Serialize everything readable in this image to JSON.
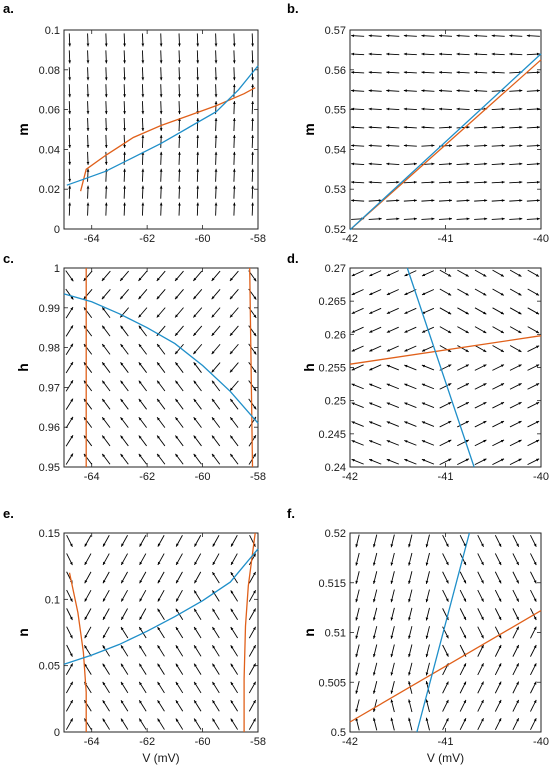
{
  "chart_data": [
    {
      "panel": "a.",
      "type": "line",
      "ylabel": "m",
      "xlabel": "",
      "xlim": [
        -65,
        -58
      ],
      "ylim": [
        0,
        0.1
      ],
      "xticks": [
        -64,
        -62,
        -60,
        -58
      ],
      "yticks": [
        0,
        0.02,
        0.04,
        0.06,
        0.08,
        0.1
      ],
      "xticklabels": [
        "-64",
        "-62",
        "-60",
        "-58"
      ],
      "yticklabels": [
        "0",
        "0.02",
        "0.04",
        "0.06",
        "0.08",
        "0.1"
      ],
      "series": [
        {
          "color": "#e0601a",
          "points": [
            [
              -64.4,
              0.019
            ],
            [
              -64.2,
              0.03
            ],
            [
              -63.5,
              0.037
            ],
            [
              -62.5,
              0.046
            ],
            [
              -61.5,
              0.052
            ],
            [
              -60.5,
              0.057
            ],
            [
              -59.5,
              0.062
            ],
            [
              -58.5,
              0.068
            ],
            [
              -58.1,
              0.071
            ]
          ]
        },
        {
          "color": "#1f8fc9",
          "points": [
            [
              -64.9,
              0.022
            ],
            [
              -64.3,
              0.025
            ],
            [
              -63.5,
              0.029
            ],
            [
              -62.5,
              0.036
            ],
            [
              -61.5,
              0.043
            ],
            [
              -60.5,
              0.051
            ],
            [
              -59.5,
              0.059
            ],
            [
              -58.7,
              0.07
            ],
            [
              -58.0,
              0.082
            ]
          ]
        }
      ],
      "field": {
        "nx": 11,
        "ny": 11,
        "x0": -64.8,
        "x1": -58.2,
        "y0": 0.01,
        "y1": 0.095,
        "pattern": "m"
      }
    },
    {
      "panel": "b.",
      "type": "line",
      "ylabel": "m",
      "xlabel": "",
      "xlim": [
        -42,
        -40
      ],
      "ylim": [
        0.52,
        0.57
      ],
      "xticks": [
        -42,
        -41,
        -40
      ],
      "yticks": [
        0.52,
        0.53,
        0.54,
        0.55,
        0.56,
        0.57
      ],
      "xticklabels": [
        "-42",
        "-41",
        "-40"
      ],
      "yticklabels": [
        "0.52",
        "0.53",
        "0.54",
        "0.55",
        "0.56",
        "0.57"
      ],
      "series": [
        {
          "color": "#e0601a",
          "points": [
            [
              -41.98,
              0.5202
            ],
            [
              -40.0,
              0.5625
            ]
          ]
        },
        {
          "color": "#1f8fc9",
          "points": [
            [
              -42.0,
              0.5198
            ],
            [
              -40.0,
              0.564
            ]
          ]
        }
      ],
      "field": {
        "nx": 11,
        "ny": 11,
        "x0": -41.92,
        "x1": -40.08,
        "y0": 0.5225,
        "y1": 0.5685,
        "pattern": "b"
      }
    },
    {
      "panel": "c.",
      "type": "line",
      "ylabel": "h",
      "xlabel": "",
      "xlim": [
        -65,
        -58
      ],
      "ylim": [
        0.95,
        1.0
      ],
      "xticks": [
        -64,
        -62,
        -60,
        -58
      ],
      "yticks": [
        0.95,
        0.96,
        0.97,
        0.98,
        0.99,
        1.0
      ],
      "xticklabels": [
        "-64",
        "-62",
        "-60",
        "-58"
      ],
      "yticklabels": [
        "0.95",
        "0.96",
        "0.97",
        "0.98",
        "0.99",
        "1"
      ],
      "series": [
        {
          "color": "#e0601a",
          "points": [
            [
              -64.2,
              0.95
            ],
            [
              -64.2,
              1.0
            ]
          ]
        },
        {
          "color": "#e0601a",
          "points": [
            [
              -58.2,
              0.95
            ],
            [
              -58.25,
              0.975
            ],
            [
              -58.3,
              1.0
            ]
          ]
        },
        {
          "color": "#1f8fc9",
          "points": [
            [
              -65.0,
              0.9935
            ],
            [
              -64.0,
              0.9915
            ],
            [
              -63.0,
              0.9885
            ],
            [
              -62.0,
              0.985
            ],
            [
              -61.0,
              0.981
            ],
            [
              -60.0,
              0.9755
            ],
            [
              -59.0,
              0.969
            ],
            [
              -58.0,
              0.961
            ]
          ]
        }
      ],
      "field": {
        "nx": 11,
        "ny": 11,
        "x0": -64.8,
        "x1": -58.2,
        "y0": 0.952,
        "y1": 0.998,
        "pattern": "c"
      }
    },
    {
      "panel": "d.",
      "type": "line",
      "ylabel": "h",
      "xlabel": "",
      "xlim": [
        -42,
        -40
      ],
      "ylim": [
        0.24,
        0.27
      ],
      "xticks": [
        -42,
        -41,
        -40
      ],
      "yticks": [
        0.24,
        0.245,
        0.25,
        0.255,
        0.26,
        0.265,
        0.27
      ],
      "xticklabels": [
        "-42",
        "-41",
        "-40"
      ],
      "yticklabels": [
        "0.24",
        "0.245",
        "0.25",
        "0.255",
        "0.26",
        "0.265",
        "0.27"
      ],
      "series": [
        {
          "color": "#e0601a",
          "points": [
            [
              -42.0,
              0.2555
            ],
            [
              -40.0,
              0.2598
            ]
          ]
        },
        {
          "color": "#1f8fc9",
          "points": [
            [
              -41.4,
              0.27
            ],
            [
              -40.7,
              0.24
            ]
          ]
        }
      ],
      "field": {
        "nx": 11,
        "ny": 11,
        "x0": -41.92,
        "x1": -40.08,
        "y0": 0.2408,
        "y1": 0.2692,
        "pattern": "d"
      }
    },
    {
      "panel": "e.",
      "type": "line",
      "ylabel": "n",
      "xlabel": "V (mV)",
      "xlim": [
        -65,
        -58
      ],
      "ylim": [
        0,
        0.15
      ],
      "xticks": [
        -64,
        -62,
        -60,
        -58
      ],
      "yticks": [
        0,
        0.05,
        0.1,
        0.15
      ],
      "xticklabels": [
        "-64",
        "-62",
        "-60",
        "-58"
      ],
      "yticklabels": [
        "0",
        "0.05",
        "0.1",
        "0.15"
      ],
      "series": [
        {
          "color": "#e0601a",
          "points": [
            [
              -64.8,
              0.12
            ],
            [
              -64.5,
              0.09
            ],
            [
              -64.3,
              0.06
            ],
            [
              -64.2,
              0.03
            ],
            [
              -64.2,
              0.0
            ]
          ]
        },
        {
          "color": "#e0601a",
          "points": [
            [
              -58.5,
              0.0
            ],
            [
              -58.5,
              0.04
            ],
            [
              -58.45,
              0.08
            ],
            [
              -58.35,
              0.11
            ],
            [
              -58.1,
              0.15
            ]
          ]
        },
        {
          "color": "#1f8fc9",
          "points": [
            [
              -65.0,
              0.051
            ],
            [
              -64.0,
              0.058
            ],
            [
              -63.0,
              0.066
            ],
            [
              -62.0,
              0.076
            ],
            [
              -61.0,
              0.087
            ],
            [
              -60.0,
              0.099
            ],
            [
              -59.0,
              0.113
            ],
            [
              -58.0,
              0.138
            ]
          ]
        }
      ],
      "field": {
        "nx": 11,
        "ny": 11,
        "x0": -64.8,
        "x1": -58.2,
        "y0": 0.006,
        "y1": 0.144,
        "pattern": "e"
      }
    },
    {
      "panel": "f.",
      "type": "line",
      "ylabel": "n",
      "xlabel": "V (mV)",
      "xlim": [
        -42,
        -40
      ],
      "ylim": [
        0.5,
        0.52
      ],
      "xticks": [
        -42,
        -41,
        -40
      ],
      "yticks": [
        0.5,
        0.505,
        0.51,
        0.515,
        0.52
      ],
      "xticklabels": [
        "-42",
        "-41",
        "-40"
      ],
      "yticklabels": [
        "0.5",
        "0.505",
        "0.51",
        "0.515",
        "0.52"
      ],
      "series": [
        {
          "color": "#e0601a",
          "points": [
            [
              -42.0,
              0.501
            ],
            [
              -40.0,
              0.5122
            ]
          ]
        },
        {
          "color": "#1f8fc9",
          "points": [
            [
              -41.3,
              0.5
            ],
            [
              -40.75,
              0.52
            ]
          ]
        }
      ],
      "field": {
        "nx": 11,
        "ny": 11,
        "x0": -41.92,
        "x1": -40.08,
        "y0": 0.5008,
        "y1": 0.5192,
        "pattern": "f"
      }
    }
  ]
}
